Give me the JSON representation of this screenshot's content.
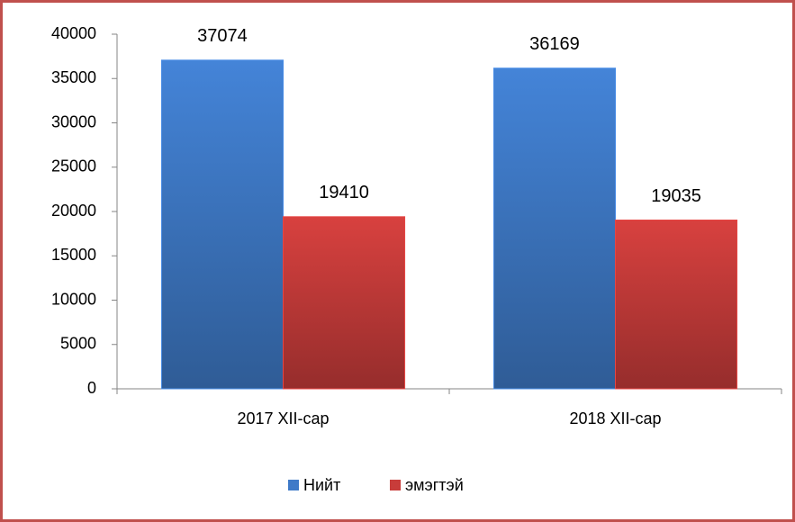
{
  "chart_data": {
    "type": "bar",
    "categories": [
      "2017 XII-сар",
      "2018 XII-сар"
    ],
    "series": [
      {
        "name": "Нийт",
        "color": "#3f7ac8",
        "values": [
          37074,
          36169
        ]
      },
      {
        "name": "эмэгтэй",
        "color": "#c83c3a",
        "values": [
          19410,
          19035
        ]
      }
    ],
    "ylim": [
      0,
      40000
    ],
    "yticks": [
      0,
      5000,
      10000,
      15000,
      20000,
      25000,
      30000,
      35000,
      40000
    ],
    "grid": false,
    "legend": "bottom"
  }
}
